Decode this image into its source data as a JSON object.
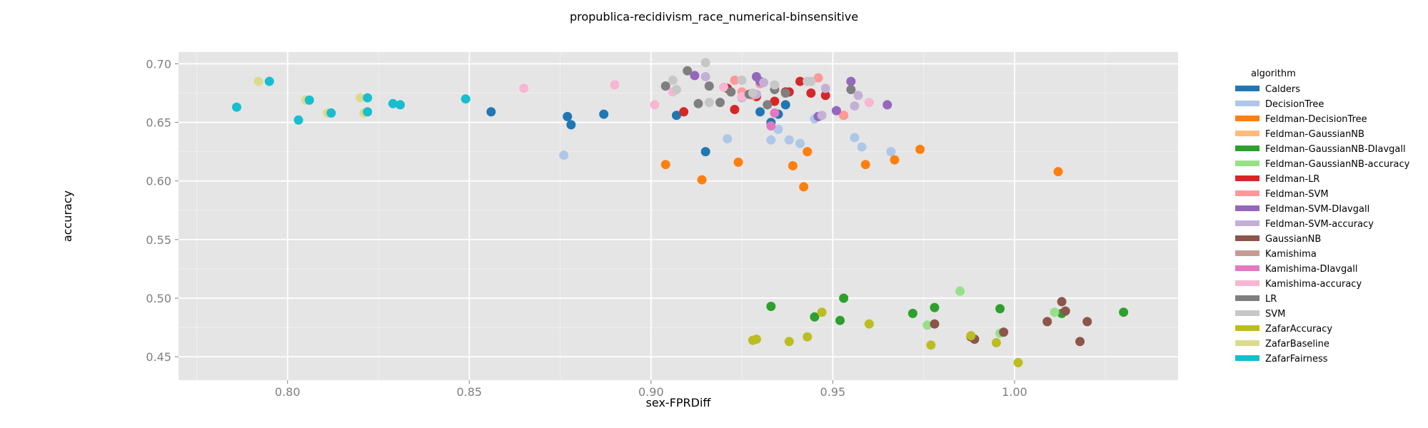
{
  "chart_data": {
    "type": "scatter",
    "title": "propublica-recidivism_race_numerical-binsensitive",
    "xlabel": "sex-FPRDiff",
    "ylabel": "accuracy",
    "xlim": [
      0.77,
      1.045
    ],
    "ylim": [
      0.43,
      0.71
    ],
    "x_ticks": [
      "0.80",
      "0.85",
      "0.90",
      "0.95",
      "1.00"
    ],
    "y_ticks": [
      "0.45",
      "0.50",
      "0.55",
      "0.60",
      "0.65",
      "0.70"
    ],
    "grid": true,
    "legend_title": "algorithm",
    "legend_placement": "right",
    "series": [
      {
        "name": "Calders",
        "color": "#1f77b4",
        "points": [
          [
            0.856,
            0.659
          ],
          [
            0.877,
            0.655
          ],
          [
            0.878,
            0.648
          ],
          [
            0.887,
            0.657
          ],
          [
            0.907,
            0.656
          ],
          [
            0.915,
            0.625
          ],
          [
            0.93,
            0.659
          ],
          [
            0.933,
            0.65
          ],
          [
            0.935,
            0.657
          ],
          [
            0.937,
            0.665
          ]
        ]
      },
      {
        "name": "DecisionTree",
        "color": "#aec7e8",
        "points": [
          [
            0.876,
            0.622
          ],
          [
            0.921,
            0.636
          ],
          [
            0.933,
            0.635
          ],
          [
            0.935,
            0.644
          ],
          [
            0.938,
            0.635
          ],
          [
            0.941,
            0.632
          ],
          [
            0.945,
            0.653
          ],
          [
            0.956,
            0.637
          ],
          [
            0.958,
            0.629
          ],
          [
            0.966,
            0.625
          ]
        ]
      },
      {
        "name": "Feldman-DecisionTree",
        "color": "#ff7f0e",
        "points": [
          [
            0.904,
            0.614
          ],
          [
            0.914,
            0.601
          ],
          [
            0.924,
            0.616
          ],
          [
            0.939,
            0.613
          ],
          [
            0.942,
            0.595
          ],
          [
            0.943,
            0.625
          ],
          [
            0.953,
            0.656
          ],
          [
            0.959,
            0.614
          ],
          [
            0.967,
            0.618
          ],
          [
            0.974,
            0.627
          ],
          [
            1.012,
            0.608
          ]
        ]
      },
      {
        "name": "Feldman-GaussianNB",
        "color": "#ffbb78",
        "points": []
      },
      {
        "name": "Feldman-GaussianNB-DIavgall",
        "color": "#2ca02c",
        "points": [
          [
            0.933,
            0.493
          ],
          [
            0.945,
            0.484
          ],
          [
            0.952,
            0.481
          ],
          [
            0.953,
            0.5
          ],
          [
            0.972,
            0.487
          ],
          [
            0.978,
            0.492
          ],
          [
            0.996,
            0.491
          ],
          [
            1.013,
            0.487
          ],
          [
            1.03,
            0.488
          ]
        ]
      },
      {
        "name": "Feldman-GaussianNB-accuracy",
        "color": "#98df8a",
        "points": [
          [
            0.976,
            0.477
          ],
          [
            0.985,
            0.506
          ],
          [
            0.996,
            0.47
          ],
          [
            1.011,
            0.488
          ]
        ]
      },
      {
        "name": "Feldman-LR",
        "color": "#d62728",
        "points": [
          [
            0.909,
            0.659
          ],
          [
            0.921,
            0.679
          ],
          [
            0.923,
            0.661
          ],
          [
            0.929,
            0.672
          ],
          [
            0.934,
            0.668
          ],
          [
            0.937,
            0.676
          ],
          [
            0.938,
            0.676
          ],
          [
            0.941,
            0.685
          ],
          [
            0.944,
            0.675
          ],
          [
            0.948,
            0.673
          ]
        ]
      },
      {
        "name": "Feldman-SVM",
        "color": "#ff9896",
        "points": [
          [
            0.923,
            0.686
          ],
          [
            0.925,
            0.676
          ],
          [
            0.928,
            0.673
          ],
          [
            0.93,
            0.683
          ],
          [
            0.946,
            0.688
          ],
          [
            0.953,
            0.656
          ]
        ]
      },
      {
        "name": "Feldman-SVM-DIavgall",
        "color": "#9467bd",
        "points": [
          [
            0.912,
            0.69
          ],
          [
            0.929,
            0.689
          ],
          [
            0.93,
            0.685
          ],
          [
            0.946,
            0.655
          ],
          [
            0.951,
            0.66
          ],
          [
            0.955,
            0.685
          ],
          [
            0.965,
            0.665
          ]
        ]
      },
      {
        "name": "Feldman-SVM-accuracy",
        "color": "#c5b0d5",
        "points": [
          [
            0.915,
            0.689
          ],
          [
            0.925,
            0.671
          ],
          [
            0.929,
            0.674
          ],
          [
            0.931,
            0.684
          ],
          [
            0.947,
            0.656
          ],
          [
            0.948,
            0.679
          ],
          [
            0.956,
            0.664
          ],
          [
            0.957,
            0.673
          ]
        ]
      },
      {
        "name": "GaussianNB",
        "color": "#8c564b",
        "points": [
          [
            0.978,
            0.478
          ],
          [
            0.988,
            0.467
          ],
          [
            0.989,
            0.465
          ],
          [
            0.997,
            0.471
          ],
          [
            1.009,
            0.48
          ],
          [
            1.013,
            0.497
          ],
          [
            1.014,
            0.489
          ],
          [
            1.018,
            0.463
          ],
          [
            1.02,
            0.48
          ]
        ]
      },
      {
        "name": "Kamishima",
        "color": "#c49c94",
        "points": []
      },
      {
        "name": "Kamishima-DIavgall",
        "color": "#e377c2",
        "points": [
          [
            0.933,
            0.647
          ],
          [
            0.934,
            0.658
          ]
        ]
      },
      {
        "name": "Kamishima-accuracy",
        "color": "#f7b6d2",
        "points": [
          [
            0.865,
            0.679
          ],
          [
            0.89,
            0.682
          ],
          [
            0.901,
            0.665
          ],
          [
            0.906,
            0.676
          ],
          [
            0.92,
            0.68
          ],
          [
            0.925,
            0.672
          ],
          [
            0.96,
            0.667
          ]
        ]
      },
      {
        "name": "LR",
        "color": "#7f7f7f",
        "points": [
          [
            0.904,
            0.681
          ],
          [
            0.91,
            0.694
          ],
          [
            0.913,
            0.666
          ],
          [
            0.916,
            0.681
          ],
          [
            0.919,
            0.667
          ],
          [
            0.922,
            0.676
          ],
          [
            0.927,
            0.674
          ],
          [
            0.932,
            0.665
          ],
          [
            0.934,
            0.678
          ],
          [
            0.937,
            0.675
          ],
          [
            0.955,
            0.678
          ]
        ]
      },
      {
        "name": "SVM",
        "color": "#c7c7c7",
        "points": [
          [
            0.906,
            0.686
          ],
          [
            0.907,
            0.678
          ],
          [
            0.915,
            0.701
          ],
          [
            0.916,
            0.667
          ],
          [
            0.925,
            0.686
          ],
          [
            0.928,
            0.675
          ],
          [
            0.934,
            0.682
          ],
          [
            0.943,
            0.685
          ],
          [
            0.944,
            0.685
          ]
        ]
      },
      {
        "name": "ZafarAccuracy",
        "color": "#bcbd22",
        "points": [
          [
            0.928,
            0.464
          ],
          [
            0.929,
            0.465
          ],
          [
            0.938,
            0.463
          ],
          [
            0.943,
            0.467
          ],
          [
            0.947,
            0.488
          ],
          [
            0.96,
            0.478
          ],
          [
            0.977,
            0.46
          ],
          [
            0.988,
            0.468
          ],
          [
            0.995,
            0.462
          ],
          [
            1.001,
            0.445
          ]
        ]
      },
      {
        "name": "ZafarBaseline",
        "color": "#dbdb8d",
        "points": [
          [
            0.792,
            0.685
          ],
          [
            0.805,
            0.669
          ],
          [
            0.811,
            0.658
          ],
          [
            0.82,
            0.671
          ],
          [
            0.821,
            0.658
          ]
        ]
      },
      {
        "name": "ZafarFairness",
        "color": "#17becf",
        "points": [
          [
            0.786,
            0.663
          ],
          [
            0.795,
            0.685
          ],
          [
            0.803,
            0.652
          ],
          [
            0.806,
            0.669
          ],
          [
            0.812,
            0.658
          ],
          [
            0.822,
            0.671
          ],
          [
            0.822,
            0.659
          ],
          [
            0.829,
            0.666
          ],
          [
            0.831,
            0.665
          ],
          [
            0.849,
            0.67
          ]
        ]
      }
    ]
  }
}
